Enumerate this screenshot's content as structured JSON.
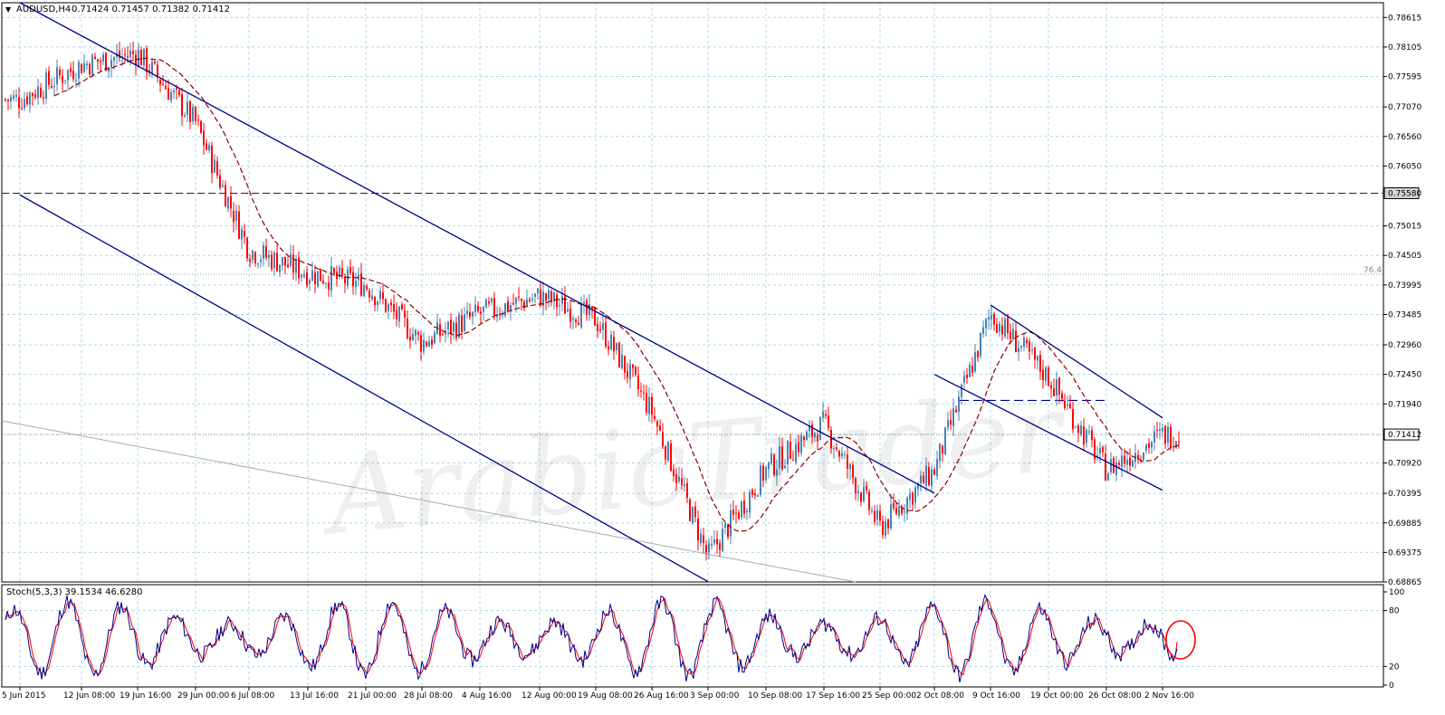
{
  "header": {
    "symbol": "AUDUSD,H4",
    "ohlc": "0.71424 0.71457 0.71382 0.71412",
    "triangle": "▼"
  },
  "chart_data": [
    {
      "type": "candlestick",
      "title": "AUDUSD,H4",
      "subtitle": "0.71424 0.71457 0.71382 0.71412",
      "ylim": [
        0.68865,
        0.7887
      ],
      "y_ticks": [
        "0.78615",
        "0.78105",
        "0.77595",
        "0.77070",
        "0.76560",
        "0.76050",
        "0.75580",
        "0.75015",
        "0.74505",
        "0.73995",
        "0.73485",
        "0.72960",
        "0.72450",
        "0.71940",
        "0.71412",
        "0.70920",
        "0.70395",
        "0.69885",
        "0.69375",
        "0.68865"
      ],
      "x_ticks": [
        "5 Jun 2015",
        "12 Jun 08:00",
        "19 Jun 16:00",
        "29 Jun 00:00",
        "6 Jul 08:00",
        "13 Jul 16:00",
        "21 Jul 00:00",
        "28 Jul 08:00",
        "4 Aug 16:00",
        "12 Aug 00:00",
        "19 Aug 08:00",
        "26 Aug 16:00",
        "3 Sep 00:00",
        "10 Sep 08:00",
        "17 Sep 16:00",
        "25 Sep 00:00",
        "2 Oct 08:00",
        "9 Oct 16:00",
        "19 Oct 00:00",
        "26 Oct 08:00",
        "2 Nov 16:00"
      ],
      "last_price": "0.71412",
      "level_line": "0.75580",
      "fib_label": "76.4",
      "fib_level": 0.7418,
      "close_path": [
        [
          "5 Jun 2015",
          0.772
        ],
        [
          "12 Jun 08:00",
          0.778
        ],
        [
          "19 Jun 16:00",
          0.78
        ],
        [
          "29 Jun 00:00",
          0.768
        ],
        [
          "6 Jul 08:00",
          0.746
        ],
        [
          "13 Jul 16:00",
          0.742
        ],
        [
          "21 Jul 00:00",
          0.74
        ],
        [
          "28 Jul 08:00",
          0.73
        ],
        [
          "4 Aug 16:00",
          0.735
        ],
        [
          "12 Aug 00:00",
          0.738
        ],
        [
          "19 Aug 08:00",
          0.734
        ],
        [
          "26 Aug 16:00",
          0.718
        ],
        [
          "3 Sep 00:00",
          0.693
        ],
        [
          "10 Sep 08:00",
          0.708
        ],
        [
          "17 Sep 16:00",
          0.716
        ],
        [
          "25 Sep 00:00",
          0.698
        ],
        [
          "2 Oct 08:00",
          0.708
        ],
        [
          "9 Oct 16:00",
          0.735
        ],
        [
          "19 Oct 00:00",
          0.724
        ],
        [
          "26 Oct 08:00",
          0.708
        ],
        [
          "2 Nov 16:00",
          0.7141
        ]
      ],
      "trendlines": [
        {
          "name": "main-channel-upper",
          "from": [
            "5 Jun 2015",
            0.7887
          ],
          "to": [
            "2 Oct 08:00",
            0.704
          ],
          "color": "#00008b"
        },
        {
          "name": "main-channel-lower",
          "from": [
            "5 Jun 2015",
            0.7555
          ],
          "to": [
            "3 Sep 00:00",
            0.6887
          ],
          "color": "#00008b"
        },
        {
          "name": "inner-channel-upper",
          "from": [
            "9 Oct 16:00",
            0.7365
          ],
          "to": [
            "2 Nov 16:00",
            0.717
          ],
          "color": "#00008b"
        },
        {
          "name": "inner-channel-lower",
          "from": [
            "2 Oct 08:00",
            0.7245
          ],
          "to": [
            "2 Nov 16:00",
            0.7045
          ],
          "color": "#00008b"
        }
      ],
      "colors": {
        "bull": "#4682b4",
        "bear": "#ff0000",
        "ma": "#8b0000",
        "trend": "#00008b",
        "grid": "#add8e6"
      }
    },
    {
      "type": "line",
      "title": "Stoch(5,3,3) 39.1534 46.6280",
      "ylim": [
        0,
        100
      ],
      "y_ticks": [
        "100",
        "80",
        "20",
        "0"
      ],
      "series": [
        {
          "color": "#00008b"
        },
        {
          "color": "#ff0000"
        }
      ],
      "last_values": [
        39.1534,
        46.628
      ]
    }
  ],
  "stoch_label": "Stoch(5,3,3) 39.1534 46.6280"
}
